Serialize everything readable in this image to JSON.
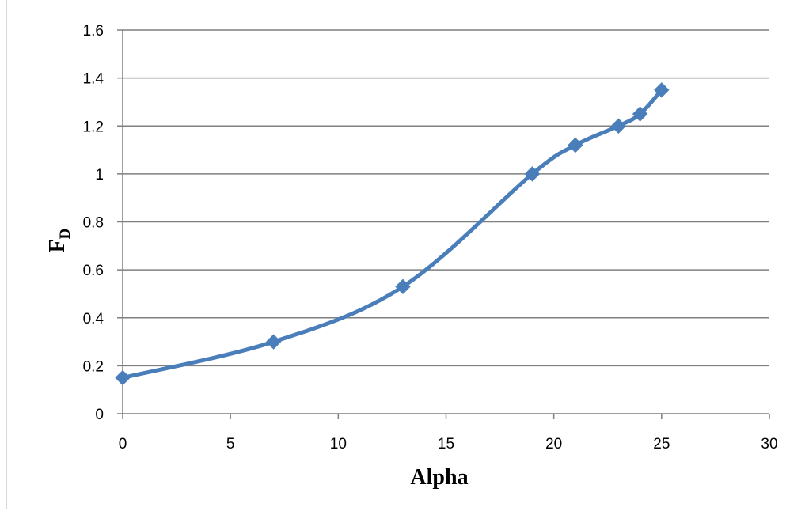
{
  "chart_data": {
    "type": "line",
    "title": "",
    "xlabel": "Alpha",
    "ylabel": "F",
    "ylabel_subscript": "D",
    "xlim": [
      0,
      30
    ],
    "ylim": [
      0,
      1.6
    ],
    "x_ticks": [
      "0",
      "5",
      "10",
      "15",
      "20",
      "25",
      "30"
    ],
    "y_ticks": [
      "0",
      "0.2",
      "0.4",
      "0.6",
      "0.8",
      "1",
      "1.2",
      "1.4",
      "1.6"
    ],
    "grid": "horizontal",
    "legend": "none",
    "series": [
      {
        "marker": "diamond",
        "smooth": true,
        "color": "#4a7ebb",
        "x": [
          0,
          7,
          13,
          19,
          21,
          23,
          24,
          25
        ],
        "y": [
          0.15,
          0.3,
          0.53,
          1.0,
          1.12,
          1.2,
          1.25,
          1.35
        ]
      }
    ]
  }
}
